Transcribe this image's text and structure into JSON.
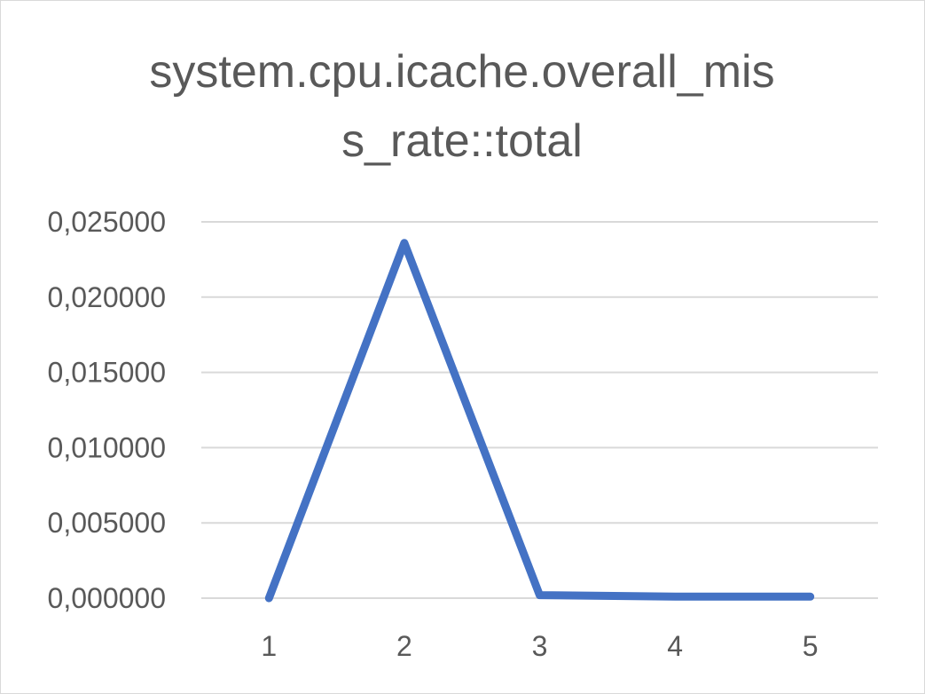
{
  "chart_data": {
    "type": "line",
    "title_lines": [
      "system.cpu.icache.overall_mis",
      "s_rate::total"
    ],
    "categories": [
      "1",
      "2",
      "3",
      "4",
      "5"
    ],
    "series": [
      {
        "values": [
          0.0,
          0.0236,
          0.0002,
          0.0001,
          0.0001
        ],
        "color": "#4472c4"
      }
    ],
    "y_ticks": [
      "0,000000",
      "0,005000",
      "0,010000",
      "0,015000",
      "0,020000",
      "0,025000"
    ],
    "ylim": [
      0,
      0.025
    ],
    "grid": true,
    "legend": "none"
  }
}
